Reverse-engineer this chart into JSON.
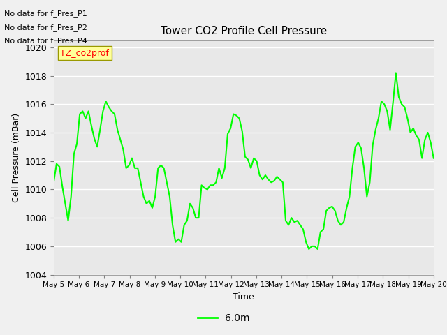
{
  "title": "Tower CO2 Profile Cell Pressure",
  "xlabel": "Time",
  "ylabel": "Cell Pressure (mBar)",
  "ylim": [
    1004,
    1020.5
  ],
  "yticks": [
    1004,
    1006,
    1008,
    1010,
    1012,
    1014,
    1016,
    1018,
    1020
  ],
  "plot_bg_color": "#e8e8e8",
  "fig_bg_color": "#f0f0f0",
  "line_color": "#00ff00",
  "line_width": 1.5,
  "legend_label": "6.0m",
  "no_data_labels": [
    "No data for f_Pres_P1",
    "No data for f_Pres_P2",
    "No data for f_Pres_P4"
  ],
  "legend_box_label": "TZ_co2prof",
  "xtick_labels": [
    "May 5",
    "May 6",
    "May 7",
    "May 8",
    "May 9",
    "May 10",
    "May 11",
    "May 12",
    "May 13",
    "May 14",
    "May 15",
    "May 16",
    "May 17",
    "May 18",
    "May 19",
    "May 20"
  ],
  "y_values": [
    1010.5,
    1011.8,
    1011.6,
    1010.2,
    1009.0,
    1007.8,
    1009.5,
    1012.5,
    1013.2,
    1015.3,
    1015.5,
    1015.0,
    1015.5,
    1014.5,
    1013.6,
    1013.0,
    1014.2,
    1015.5,
    1016.2,
    1015.8,
    1015.5,
    1015.3,
    1014.2,
    1013.5,
    1012.8,
    1011.5,
    1011.7,
    1012.2,
    1011.5,
    1011.5,
    1010.5,
    1009.5,
    1009.0,
    1009.2,
    1008.7,
    1009.5,
    1011.5,
    1011.7,
    1011.5,
    1010.5,
    1009.5,
    1007.5,
    1006.3,
    1006.5,
    1006.3,
    1007.5,
    1007.8,
    1009.0,
    1008.7,
    1008.0,
    1008.0,
    1010.3,
    1010.1,
    1010.0,
    1010.3,
    1010.3,
    1010.5,
    1011.5,
    1010.8,
    1011.5,
    1013.9,
    1014.3,
    1015.3,
    1015.2,
    1015.0,
    1014.1,
    1012.3,
    1012.1,
    1011.5,
    1012.2,
    1012.0,
    1011.0,
    1010.7,
    1011.0,
    1010.7,
    1010.5,
    1010.6,
    1010.9,
    1010.7,
    1010.5,
    1007.8,
    1007.5,
    1008.0,
    1007.7,
    1007.8,
    1007.5,
    1007.2,
    1006.3,
    1005.8,
    1006.0,
    1006.0,
    1005.8,
    1007.0,
    1007.2,
    1008.5,
    1008.7,
    1008.8,
    1008.5,
    1007.8,
    1007.5,
    1007.7,
    1008.7,
    1009.5,
    1011.5,
    1013.0,
    1013.3,
    1012.9,
    1011.5,
    1009.5,
    1010.5,
    1013.1,
    1014.2,
    1015.0,
    1016.2,
    1016.0,
    1015.5,
    1014.2,
    1016.1,
    1018.2,
    1016.5,
    1016.0,
    1015.8,
    1015.0,
    1014.0,
    1014.3,
    1013.8,
    1013.5,
    1012.2,
    1013.5,
    1014.0,
    1013.3,
    1012.2
  ]
}
